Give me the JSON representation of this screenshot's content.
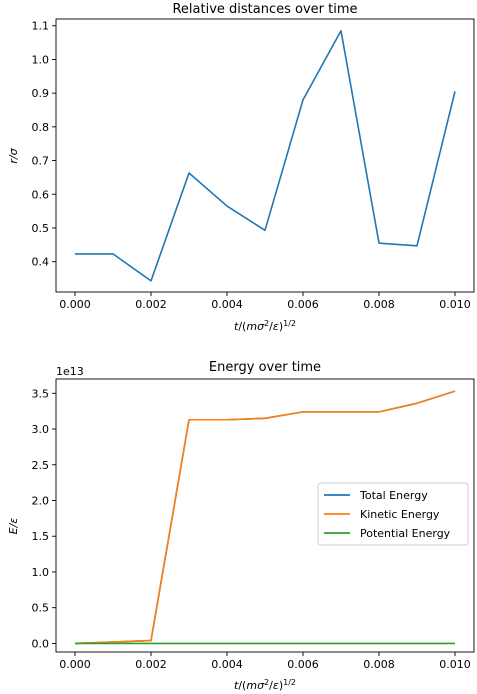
{
  "chart_data": [
    {
      "type": "line",
      "title": "Relative distances over time",
      "xlabel": "t/(mσ²/ε)^1/2",
      "ylabel": "r/σ",
      "xlim": [
        -0.0005,
        0.0105
      ],
      "ylim": [
        0.31,
        1.12
      ],
      "xticks": [
        "0.000",
        "0.002",
        "0.004",
        "0.006",
        "0.008",
        "0.010"
      ],
      "yticks": [
        "0.4",
        "0.5",
        "0.6",
        "0.7",
        "0.8",
        "0.9",
        "1.0",
        "1.1"
      ],
      "grid": false,
      "series": [
        {
          "color": "#1f77b4",
          "x": [
            0.0,
            0.001,
            0.002,
            0.003,
            0.004,
            0.005,
            0.006,
            0.007,
            0.008,
            0.009,
            0.01
          ],
          "y": [
            0.423,
            0.423,
            0.343,
            0.663,
            0.565,
            0.493,
            0.88,
            1.085,
            0.455,
            0.447,
            0.905
          ]
        }
      ]
    },
    {
      "type": "line",
      "title": "Energy over time",
      "xlabel": "t/(mσ²/ε)^1/2",
      "ylabel": "E/ε",
      "scale_label": "1e13",
      "xlim": [
        -0.0005,
        0.0105
      ],
      "ylim": [
        -0.12,
        3.7
      ],
      "xticks": [
        "0.000",
        "0.002",
        "0.004",
        "0.006",
        "0.008",
        "0.010"
      ],
      "yticks": [
        "0.0",
        "0.5",
        "1.0",
        "1.5",
        "2.0",
        "2.5",
        "3.0",
        "3.5"
      ],
      "grid": false,
      "legend_placement": "center-right",
      "series": [
        {
          "name": "Total Energy",
          "color": "#1f77b4",
          "x": [
            0.0,
            0.001,
            0.002,
            0.003,
            0.004,
            0.005,
            0.006,
            0.007,
            0.008,
            0.009,
            0.01
          ],
          "y": [
            0.0,
            0.02,
            0.04,
            3.13,
            3.13,
            3.15,
            3.24,
            3.24,
            3.24,
            3.36,
            3.53
          ]
        },
        {
          "name": "Kinetic Energy",
          "color": "#ff7f0e",
          "x": [
            0.0,
            0.001,
            0.002,
            0.003,
            0.004,
            0.005,
            0.006,
            0.007,
            0.008,
            0.009,
            0.01
          ],
          "y": [
            0.0,
            0.02,
            0.04,
            3.13,
            3.13,
            3.15,
            3.24,
            3.24,
            3.24,
            3.36,
            3.53
          ]
        },
        {
          "name": "Potential Energy",
          "color": "#2ca02c",
          "x": [
            0.0,
            0.001,
            0.002,
            0.003,
            0.004,
            0.005,
            0.006,
            0.007,
            0.008,
            0.009,
            0.01
          ],
          "y": [
            0.0,
            0.0,
            0.0,
            0.0,
            0.0,
            0.0,
            0.0,
            0.0,
            0.0,
            0.0,
            0.0
          ]
        }
      ]
    }
  ]
}
